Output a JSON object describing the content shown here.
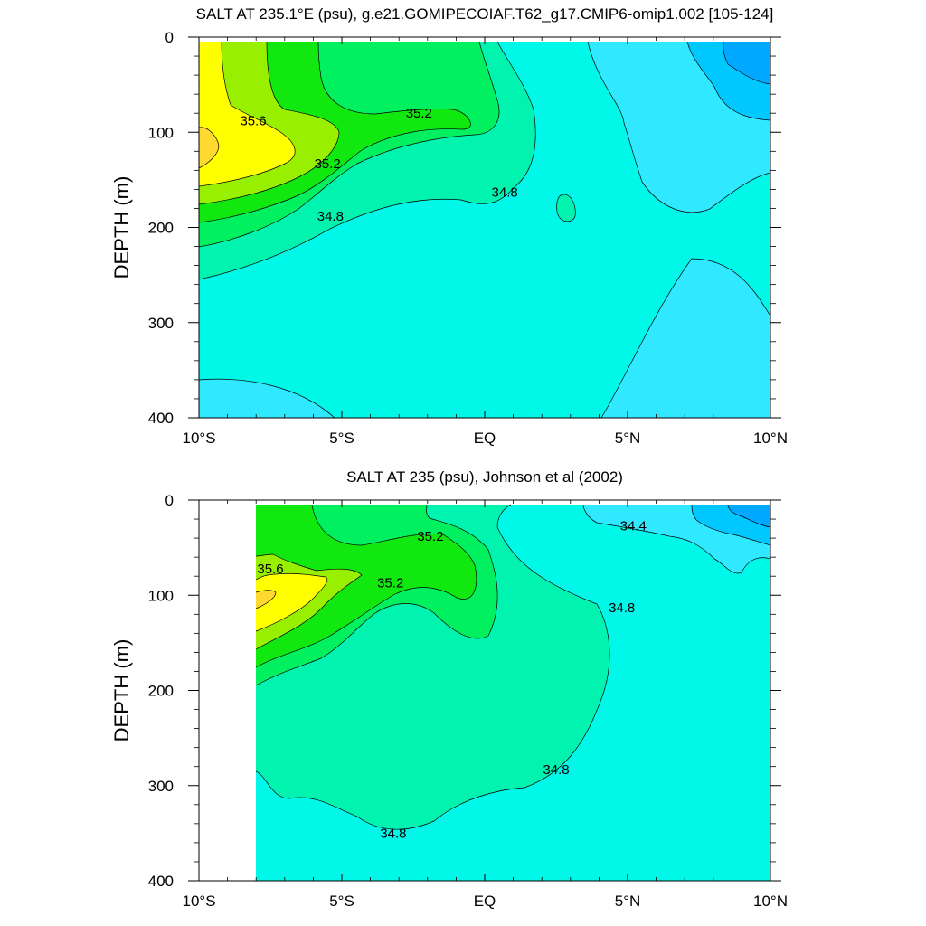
{
  "chart_data": [
    {
      "type": "contour",
      "title": "SALT AT 235.1°E (psu), g.e21.GOMIPECOIAF.T62_g17.CMIP6-omip1.002 [105-124]",
      "ylabel": "DEPTH (m)",
      "xlim": [
        -10,
        10
      ],
      "ylim": [
        400,
        0
      ],
      "x_ticks": [
        {
          "value": -10,
          "label": "10°S"
        },
        {
          "value": -5,
          "label": "5°S"
        },
        {
          "value": 0,
          "label": "EQ"
        },
        {
          "value": 5,
          "label": "5°N"
        },
        {
          "value": 10,
          "label": "10°N"
        }
      ],
      "y_ticks": [
        0,
        100,
        200,
        300,
        400
      ],
      "data_extent_x": [
        -10,
        10
      ],
      "contour_interval": 0.2,
      "level_colors": {
        "34.0-34.2": "#00a8ff",
        "34.2-34.4": "#00c8ff",
        "34.4-34.6": "#30e8ff",
        "34.6-34.8": "#00f8e8",
        "34.8-35.0": "#00f4b0",
        "35.0-35.2": "#00f060",
        "35.2-35.4": "#10e810",
        "35.4-35.6": "#98f000",
        "35.6-35.8": "#ffff00",
        "35.8-36.0": "#ffd830"
      },
      "contour_labels": [
        {
          "text": "35.6",
          "x": -8.1,
          "depth": 88
        },
        {
          "text": "35.2",
          "x": -2.3,
          "depth": 80
        },
        {
          "text": "35.2",
          "x": -5.5,
          "depth": 133
        },
        {
          "text": "34.8",
          "x": 0.7,
          "depth": 163
        },
        {
          "text": "34.8",
          "x": -5.4,
          "depth": 188
        }
      ]
    },
    {
      "type": "contour",
      "title": "SALT AT 235 (psu), Johnson et al (2002)",
      "ylabel": "DEPTH (m)",
      "xlim": [
        -10,
        10
      ],
      "ylim": [
        400,
        0
      ],
      "x_ticks": [
        {
          "value": -10,
          "label": "10°S"
        },
        {
          "value": -5,
          "label": "5°S"
        },
        {
          "value": 0,
          "label": "EQ"
        },
        {
          "value": 5,
          "label": "5°N"
        },
        {
          "value": 10,
          "label": "10°N"
        }
      ],
      "y_ticks": [
        0,
        100,
        200,
        300,
        400
      ],
      "data_extent_x": [
        -8,
        10
      ],
      "contour_interval": 0.2,
      "level_colors": {
        "34.0-34.2": "#00a8ff",
        "34.2-34.4": "#00c8ff",
        "34.4-34.6": "#30e8ff",
        "34.6-34.8": "#00f8e8",
        "34.8-35.0": "#00f4b0",
        "35.0-35.2": "#00f060",
        "35.2-35.4": "#10e810",
        "35.4-35.6": "#98f000",
        "35.6-35.8": "#ffff00",
        "35.8-36.0": "#ffd830"
      },
      "contour_labels": [
        {
          "text": "35.2",
          "x": -1.9,
          "depth": 38
        },
        {
          "text": "34.4",
          "x": 5.2,
          "depth": 27
        },
        {
          "text": "35.6",
          "x": -7.5,
          "depth": 72
        },
        {
          "text": "35.2",
          "x": -3.3,
          "depth": 87
        },
        {
          "text": "34.8",
          "x": 4.8,
          "depth": 113
        },
        {
          "text": "34.8",
          "x": 2.5,
          "depth": 283
        },
        {
          "text": "34.8",
          "x": -3.2,
          "depth": 350
        }
      ]
    }
  ]
}
